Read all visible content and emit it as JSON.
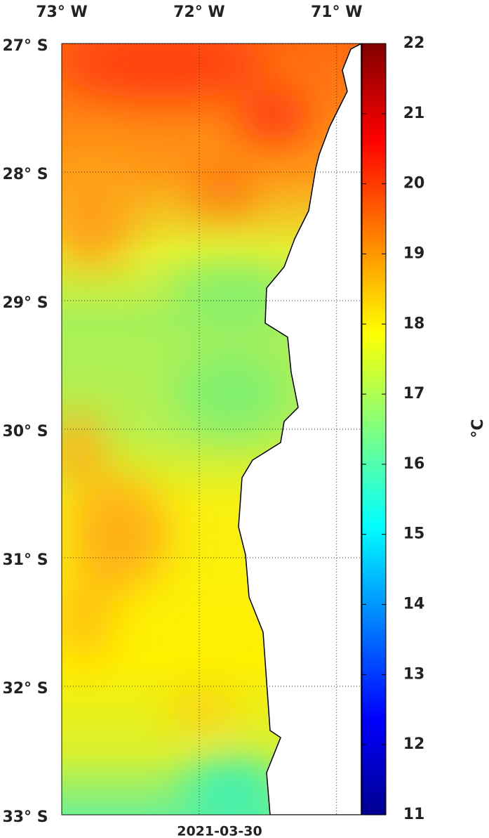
{
  "map": {
    "xlim": [
      -73,
      -70.82
    ],
    "ylim": [
      -33,
      -27
    ],
    "x_ticks": [
      {
        "value": -73,
        "label": "73° W"
      },
      {
        "value": -72,
        "label": "72° W"
      },
      {
        "value": -71,
        "label": "71° W"
      }
    ],
    "y_ticks": [
      {
        "value": -27,
        "label": "27° S"
      },
      {
        "value": -28,
        "label": "28° S"
      },
      {
        "value": -29,
        "label": "29° S"
      },
      {
        "value": -30,
        "label": "30° S"
      },
      {
        "value": -31,
        "label": "31° S"
      },
      {
        "value": -32,
        "label": "32° S"
      },
      {
        "value": -33,
        "label": "33° S"
      }
    ],
    "grid": true,
    "colorbar": {
      "lim": [
        11,
        22
      ],
      "ticks": [
        11,
        12,
        13,
        14,
        15,
        16,
        17,
        18,
        19,
        20,
        21,
        22
      ],
      "label": "°C"
    },
    "date": "2021-03-30"
  }
}
